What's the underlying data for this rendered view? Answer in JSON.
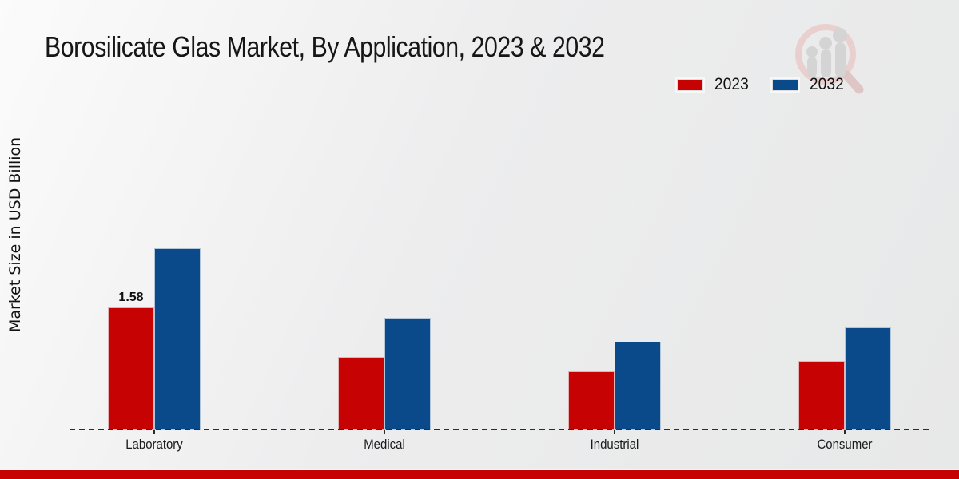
{
  "chart_data": {
    "type": "bar",
    "title": "Borosilicate Glas Market, By Application, 2023 & 2032",
    "ylabel": "Market Size in USD Billion",
    "xlabel": "",
    "categories": [
      "Laboratory",
      "Medical",
      "Industrial",
      "Consumer"
    ],
    "series": [
      {
        "name": "2023",
        "color": "#c60202",
        "values": [
          1.58,
          0.94,
          0.75,
          0.89
        ]
      },
      {
        "name": "2032",
        "color": "#0a4a8a",
        "values": [
          2.34,
          1.45,
          1.14,
          1.32
        ]
      }
    ],
    "annotations": [
      {
        "category_index": 0,
        "series_index": 0,
        "text": "1.58"
      }
    ],
    "ylim": [
      0,
      2.6
    ],
    "grid": false,
    "y_axis_ticks_visible": false,
    "legend_position": "top-right",
    "baseline_style": "dashed"
  },
  "colors": {
    "background_top": "#fbfbfb",
    "background_bottom": "#e7e8e8",
    "axis": "#2c2c2c",
    "text": "#1a1a1a",
    "bottom_bar": "#c60202",
    "watermark_gray": "#d4d4d4",
    "watermark_pink": "#eac6c6"
  },
  "watermark": {
    "icon": "magnifier-bar-chart-logo"
  }
}
